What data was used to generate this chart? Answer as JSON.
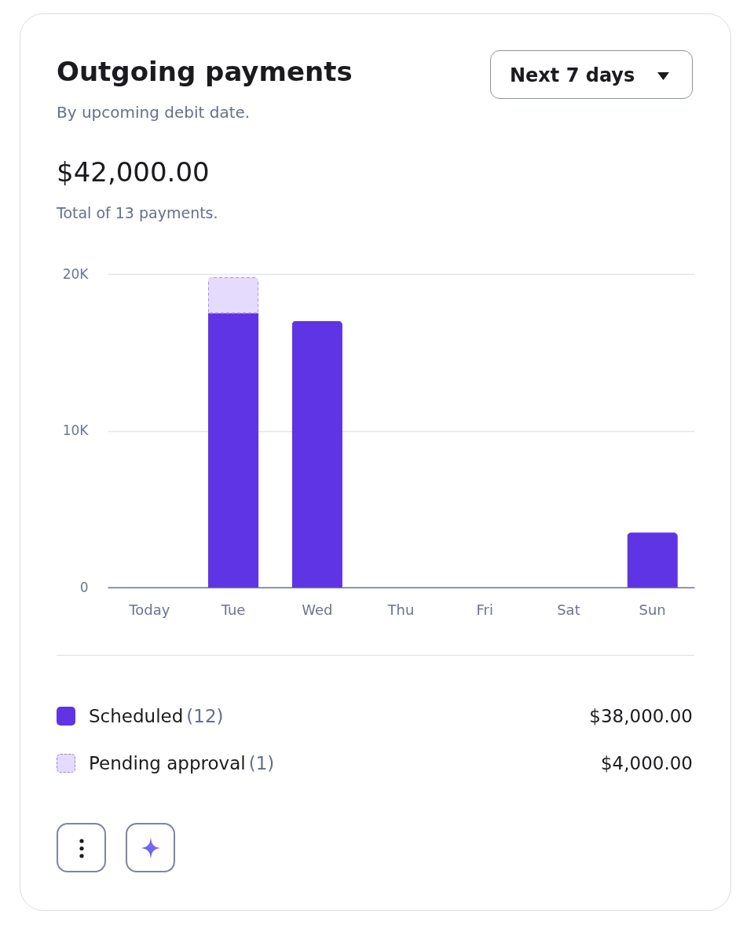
{
  "chart_data": {
    "type": "bar",
    "title": "Outgoing payments",
    "subtitle": "By upcoming debit date.",
    "annotations": [
      "$42,000.00",
      "Total of 13 payments.",
      "Next 7 days",
      "(12)",
      "$38,000.00",
      "(1)",
      "$4,000.00"
    ],
    "categories": [
      "Today",
      "Tue",
      "Wed",
      "Thu",
      "Fri",
      "Sat",
      "Sun"
    ],
    "series": [
      {
        "name": "Scheduled",
        "color": "#5f34e5",
        "values": [
          null,
          17500,
          17000,
          null,
          null,
          null,
          3500
        ]
      },
      {
        "name": "Pending approval",
        "color": "#e4dbfd",
        "line_style": "dashed",
        "values": [
          null,
          2300,
          null,
          null,
          null,
          null,
          null
        ]
      }
    ],
    "stacked": true,
    "ylim": [
      0,
      20000
    ],
    "yticks": [
      0,
      {
        "value": 10000,
        "label": "10K"
      },
      {
        "value": 20000,
        "label": "20K"
      }
    ],
    "grid": "y",
    "legend": "bottom"
  }
}
